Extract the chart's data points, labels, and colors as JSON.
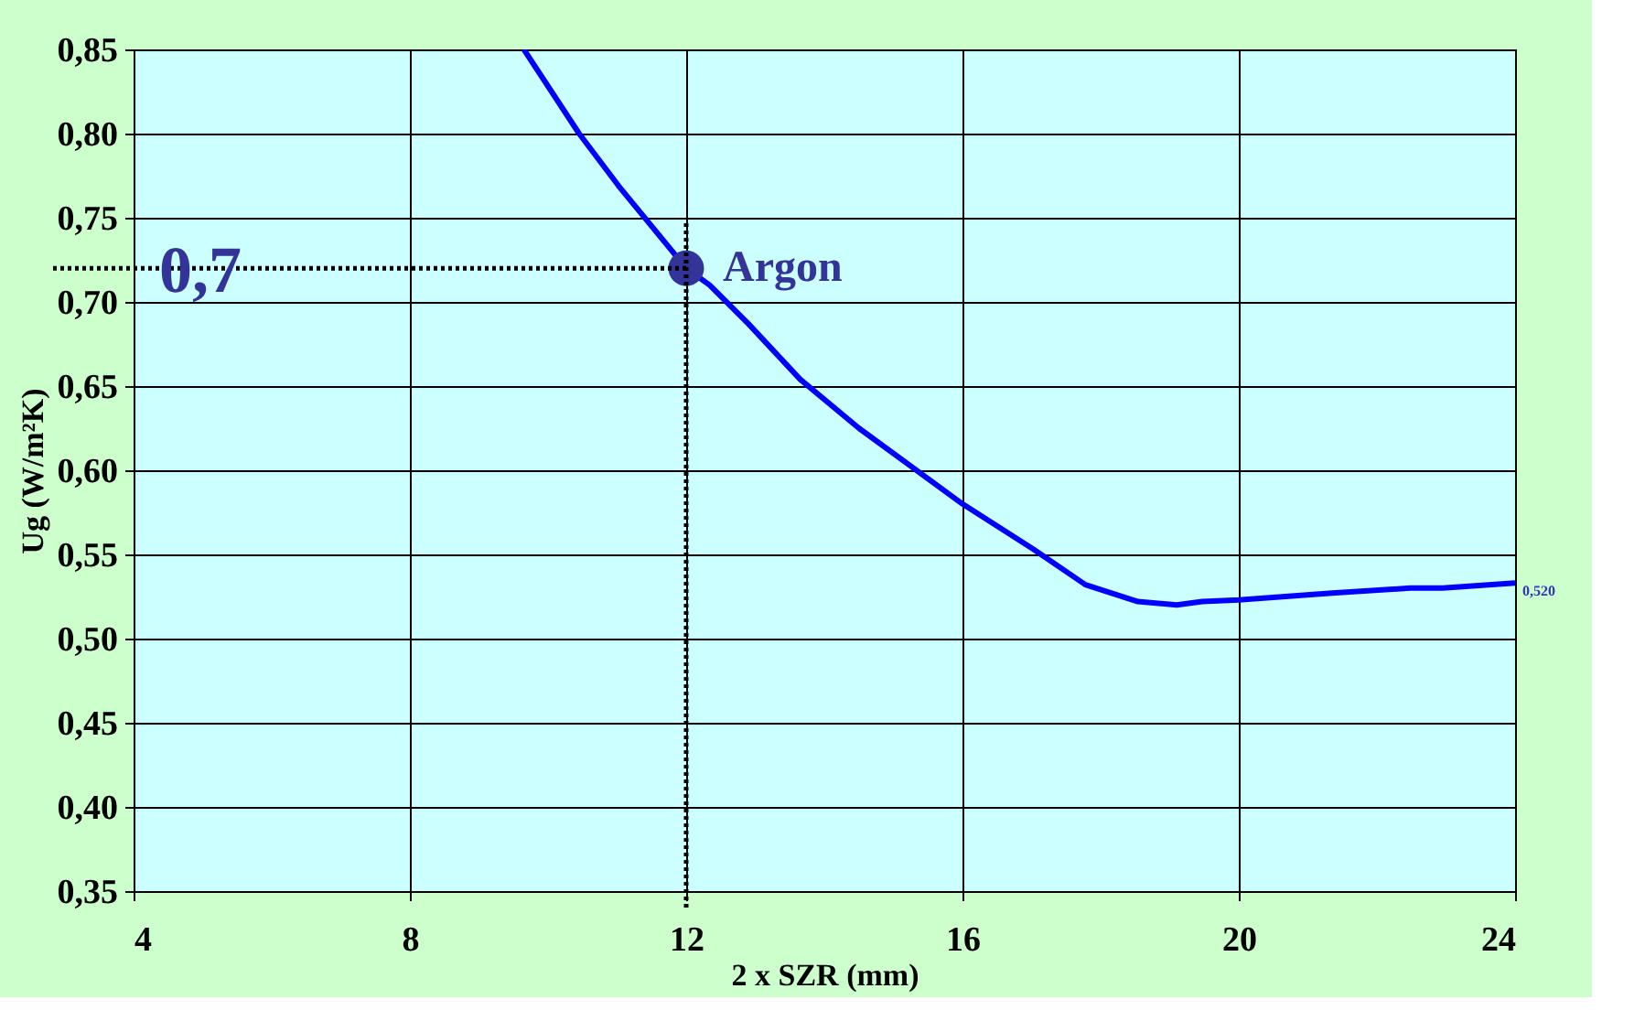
{
  "chart_data": {
    "type": "line",
    "xlabel": "2 x SZR (mm)",
    "ylabel": "Ug (W/m²K)",
    "xlim": [
      4,
      24
    ],
    "xticks": [
      4,
      8,
      12,
      16,
      20,
      24
    ],
    "ylim": [
      0.35,
      0.85
    ],
    "yticks": [
      {
        "value": 0.35,
        "label": "0,35"
      },
      {
        "value": 0.4,
        "label": "0,40"
      },
      {
        "value": 0.45,
        "label": "0,45"
      },
      {
        "value": 0.5,
        "label": "0,50"
      },
      {
        "value": 0.55,
        "label": "0,55"
      },
      {
        "value": 0.6,
        "label": "0,60"
      },
      {
        "value": 0.65,
        "label": "0,65"
      },
      {
        "value": 0.7,
        "label": "0,70"
      },
      {
        "value": 0.75,
        "label": "0,75"
      },
      {
        "value": 0.8,
        "label": "0,80"
      },
      {
        "value": 0.85,
        "label": "0,85"
      }
    ],
    "grid": true,
    "marker": "none",
    "line_style": "solid",
    "series": [
      {
        "color": "#0000ff",
        "x": [
          9.65,
          10.45,
          11.02,
          12.0,
          12.34,
          12.9,
          13.65,
          14.5,
          16.0,
          17.03,
          17.78,
          18.54,
          19.1,
          19.47,
          20.0,
          21.35,
          22.48,
          22.95,
          24.0
        ],
        "values": [
          0.85,
          0.8,
          0.769,
          0.72,
          0.71,
          0.687,
          0.654,
          0.625,
          0.58,
          0.553,
          0.532,
          0.522,
          0.52,
          0.522,
          0.523,
          0.527,
          0.53,
          0.53,
          0.533
        ]
      },
      {
        "type": "scatter",
        "name": "Argon",
        "color": "#333399",
        "marker": "circle",
        "x": [
          12
        ],
        "values": [
          0.72
        ]
      }
    ],
    "ref_lines": [
      {
        "axis": "y",
        "value": 0.72,
        "label": "0,7",
        "color": "#000000",
        "line_style": "dotted"
      },
      {
        "axis": "x",
        "value": 12,
        "color": "#000000",
        "line_style": "dotted"
      }
    ],
    "annotations": [
      {
        "text": "0,520",
        "x": 24,
        "y": 0.533
      }
    ]
  }
}
